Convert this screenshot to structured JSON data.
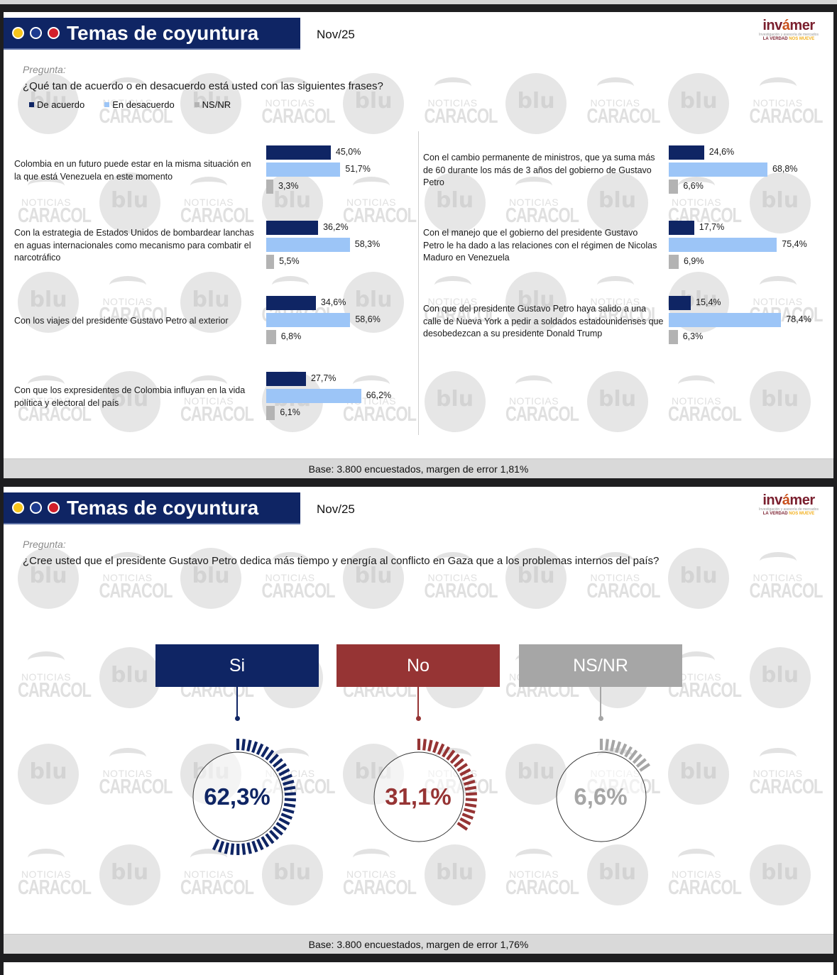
{
  "slides": [
    {
      "header": {
        "title": "Temas de coyuntura",
        "date": "Nov/25",
        "logo": {
          "name": "invamer",
          "tag1": "Investigación y asesoría de mercados",
          "tag2a": "LA VERDAD",
          "tag2b": "NOS MUEVE"
        }
      },
      "question_label": "Pregunta:",
      "question": "¿Qué tan de acuerdo o en desacuerdo está usted con las siguientes frases?",
      "legend": [
        {
          "label": "De acuerdo",
          "color": "#0f2564"
        },
        {
          "label": "En desacuerdo",
          "color": "#9cc5f7"
        },
        {
          "label": "NS/NR",
          "color": "#b3b3b3"
        }
      ],
      "footer": "Base: 3.800 encuestados, margen de error 1,81%"
    },
    {
      "header": {
        "title": "Temas de coyuntura",
        "date": "Nov/25",
        "logo": {
          "name": "invamer",
          "tag1": "Investigación y asesoría de mercados",
          "tag2a": "LA VERDAD",
          "tag2b": "NOS MUEVE"
        }
      },
      "question_label": "Pregunta:",
      "question": "¿Cree usted que el presidente Gustavo Petro dedica más tiempo y energía al conflicto en Gaza que a los problemas internos del país?",
      "footer": "Base: 3.800 encuestados, margen de error 1,76%"
    }
  ],
  "chart_data": [
    {
      "type": "bar",
      "orientation": "horizontal",
      "title": "¿Qué tan de acuerdo o en desacuerdo está usted con las siguientes frases?",
      "categories": [
        "Colombia en un futuro puede estar en la misma situación en la que está Venezuela en este momento",
        "Con la estrategia de Estados Unidos de bombardear lanchas en aguas internacionales como mecanismo para combatir el narcotráfico",
        "Con los viajes del presidente Gustavo Petro al exterior",
        "Con que los expresidentes de Colombia influyan en la vida política y electoral del país",
        "Con el cambio permanente de ministros, que ya suma más de 60 durante los más de 3 años del gobierno de Gustavo Petro",
        "Con el manejo que el gobierno del presidente Gustavo Petro le ha dado a las relaciones con el régimen de Nicolas Maduro en Venezuela",
        "Con que del presidente Gustavo Petro haya salido a una calle de Nueva York a pedir a soldados estadounidenses que desobedezcan a su presidente Donald Trump"
      ],
      "series": [
        {
          "name": "De acuerdo",
          "color": "#0f2564",
          "values": [
            45.0,
            36.2,
            34.6,
            27.7,
            24.6,
            17.7,
            15.4
          ],
          "labels": [
            "45,0%",
            "36,2%",
            "34,6%",
            "27,7%",
            "24,6%",
            "17,7%",
            "15,4%"
          ]
        },
        {
          "name": "En desacuerdo",
          "color": "#9cc5f7",
          "values": [
            51.7,
            58.3,
            58.6,
            66.2,
            68.8,
            75.4,
            78.4
          ],
          "labels": [
            "51,7%",
            "58,3%",
            "58,6%",
            "66,2%",
            "68,8%",
            "75,4%",
            "78,4%"
          ]
        },
        {
          "name": "NS/NR",
          "color": "#b3b3b3",
          "values": [
            3.3,
            5.5,
            6.8,
            6.1,
            6.6,
            6.9,
            6.3
          ],
          "labels": [
            "3,3%",
            "5,5%",
            "6,8%",
            "6,1%",
            "6,6%",
            "6,9%",
            "6,3%"
          ]
        }
      ],
      "xlim": [
        0,
        100
      ],
      "legend_position": "top-left",
      "grid": false,
      "note": "Base: 3.800 encuestados, margen de error 1,81%"
    },
    {
      "type": "pie",
      "style": "radial gauges",
      "title": "¿Cree usted que el presidente Gustavo Petro dedica más tiempo y energía al conflicto en Gaza que a los problemas internos del país?",
      "categories": [
        "Si",
        "No",
        "NS/NR"
      ],
      "values": [
        62.3,
        31.1,
        6.6
      ],
      "labels": [
        "62,3%",
        "31,1%",
        "6,6%"
      ],
      "colors": [
        "#0f2564",
        "#963434",
        "#a6a6a6"
      ],
      "note": "Base: 3.800 encuestados, margen de error 1,76%"
    }
  ]
}
